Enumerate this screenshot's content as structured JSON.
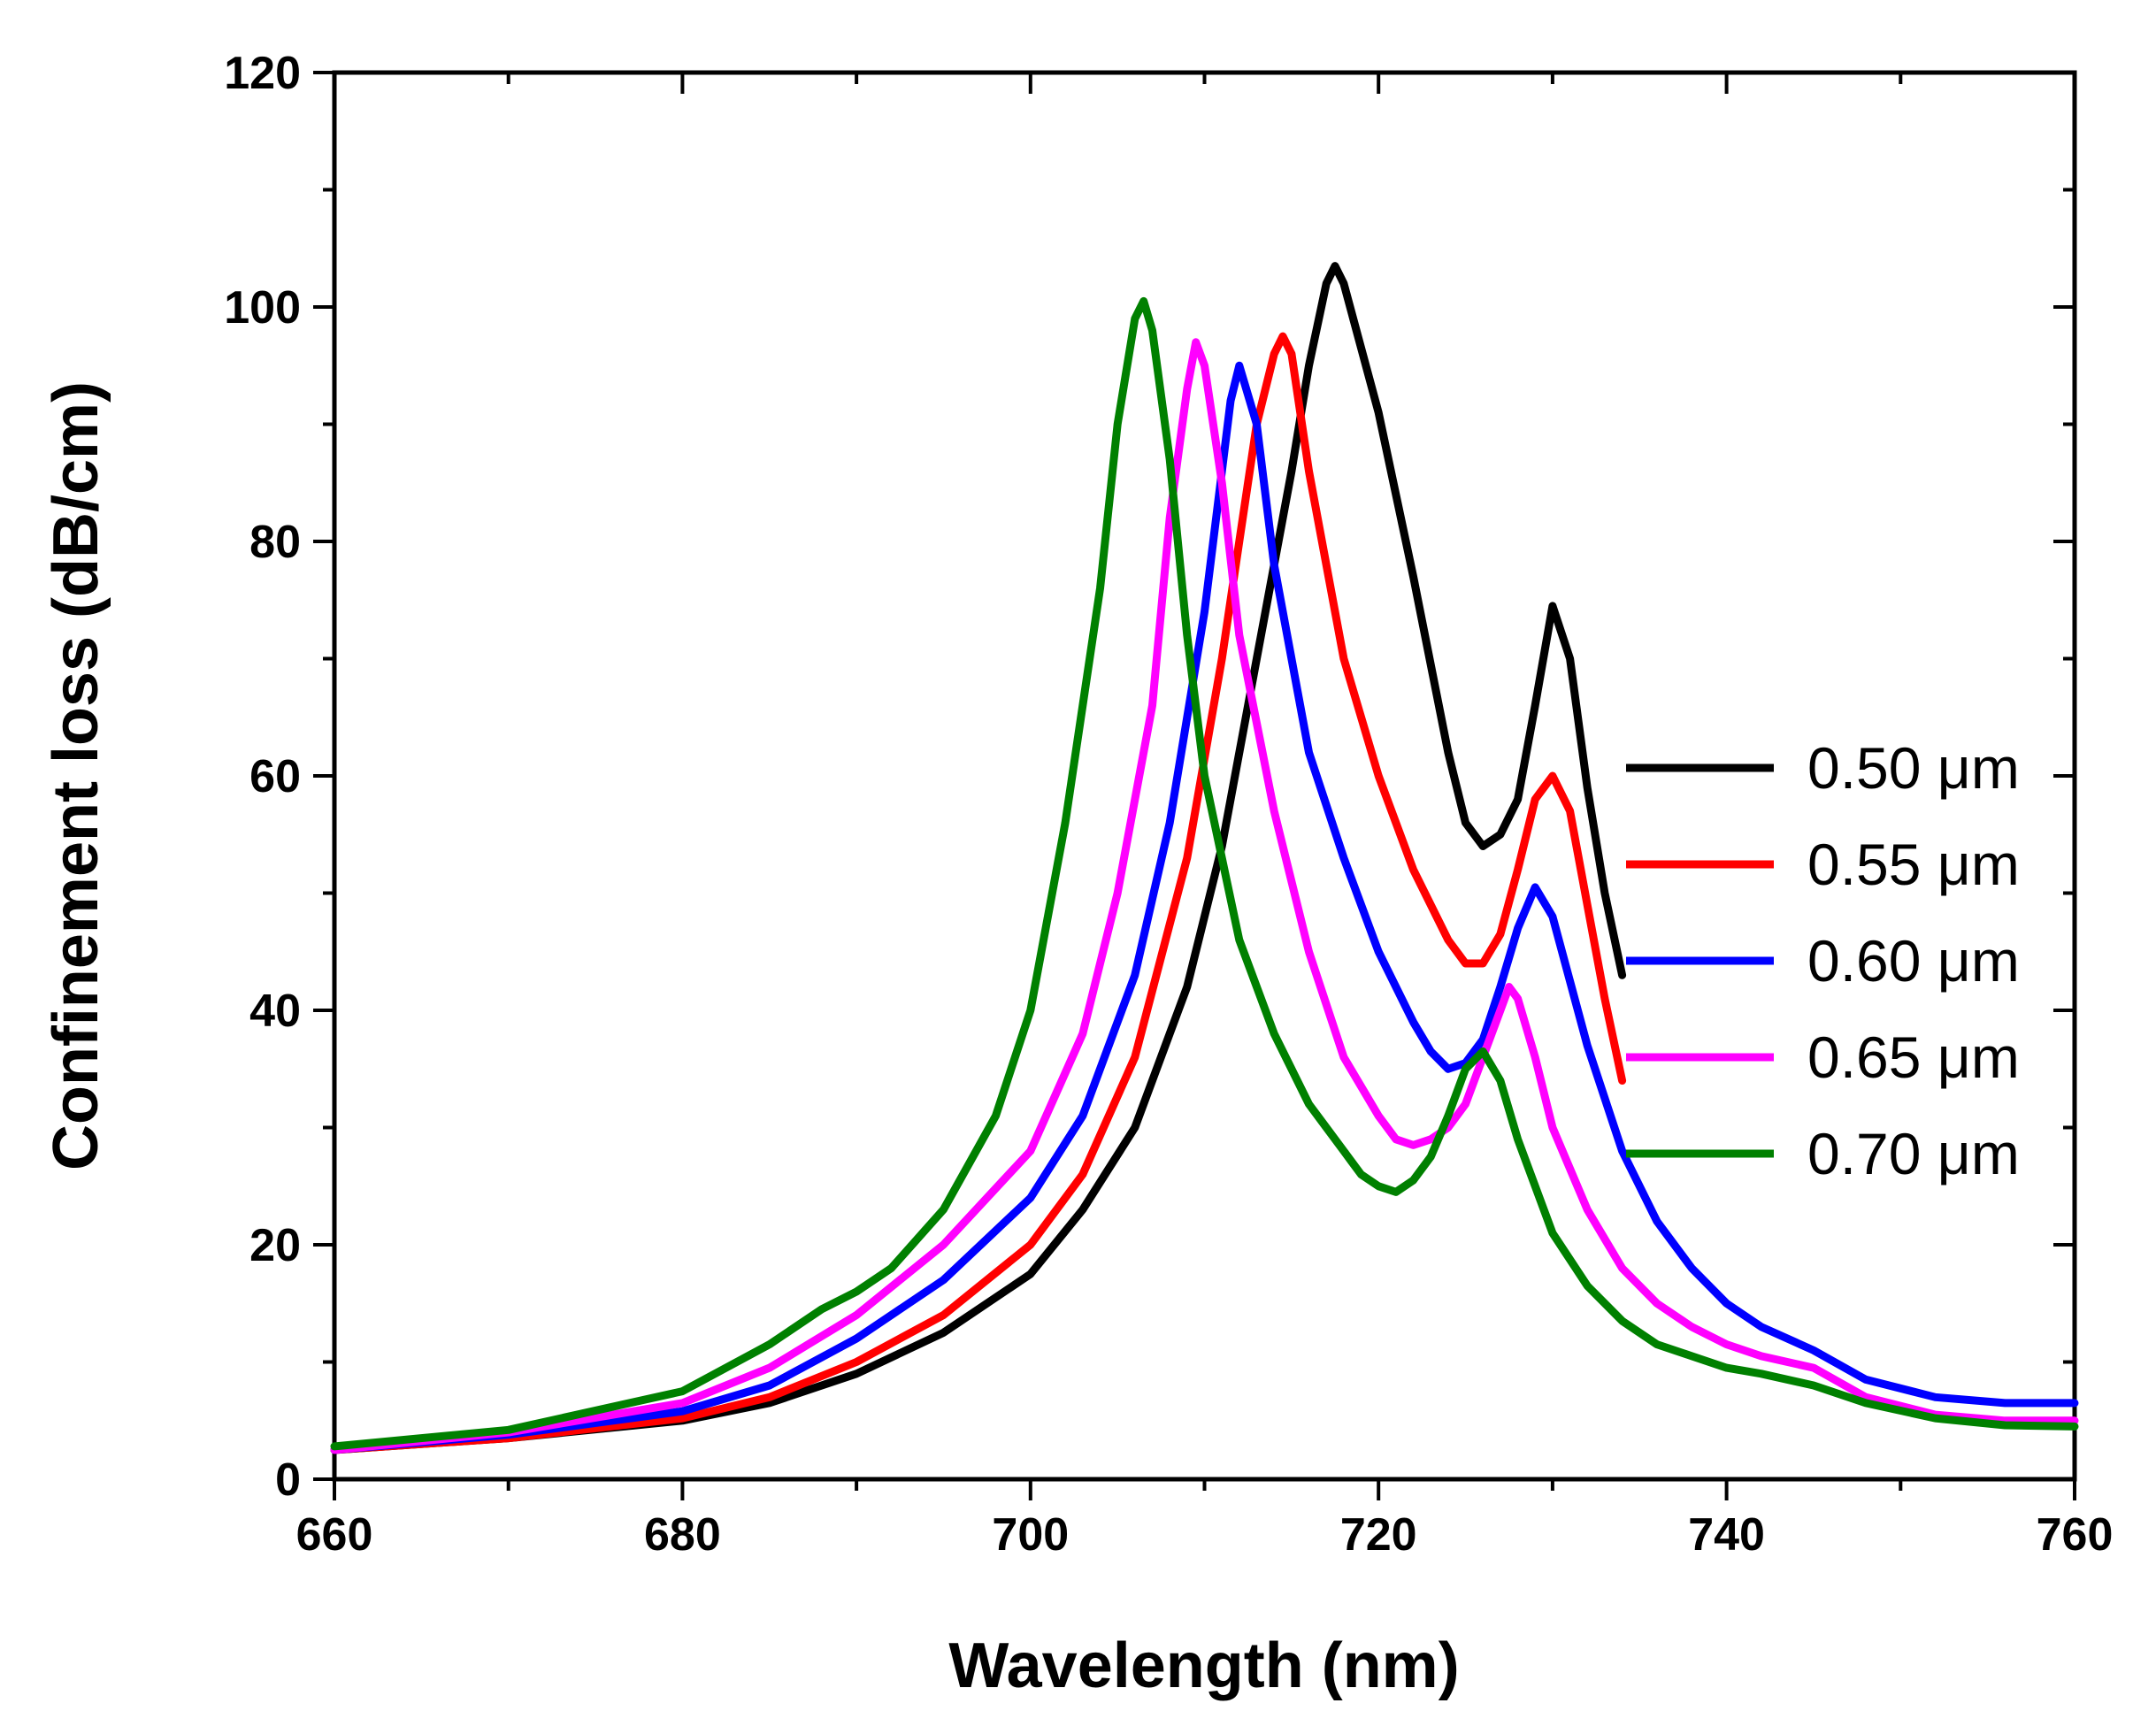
{
  "chart_data": {
    "type": "line",
    "xlabel": "Wavelength (nm)",
    "ylabel": "Confinement loss (dB/cm)",
    "xlim": [
      660,
      760
    ],
    "ylim": [
      0,
      120
    ],
    "xticks": [
      660,
      680,
      700,
      720,
      740,
      760
    ],
    "yticks": [
      0,
      20,
      40,
      60,
      80,
      100,
      120
    ],
    "xtick_labels": [
      "660",
      "680",
      "700",
      "720",
      "740",
      "760"
    ],
    "ytick_labels": [
      "0",
      "20",
      "40",
      "60",
      "80",
      "100",
      "120"
    ],
    "grid": false,
    "legend_position": "right",
    "series": [
      {
        "name": "0.50 μm",
        "color": "#000000",
        "x": [
          660,
          670,
          680,
          685,
          690,
          695,
          700,
          703,
          706,
          709,
          711,
          713,
          715,
          716,
          717,
          717.5,
          718,
          720,
          722,
          724,
          725,
          726,
          727,
          728,
          729,
          730,
          731,
          732,
          733,
          734
        ],
        "y": [
          2.5,
          3.5,
          5.0,
          6.5,
          9.0,
          12.5,
          17.5,
          23,
          30,
          42,
          54,
          70,
          86,
          95,
          102,
          103.5,
          102,
          91,
          77,
          62,
          56,
          54,
          55,
          58,
          66,
          74.5,
          70,
          59,
          50,
          43
        ]
      },
      {
        "name": "0.55 μm",
        "color": "#ff0000",
        "x": [
          660,
          670,
          680,
          685,
          690,
          695,
          700,
          703,
          706,
          709,
          711,
          712,
          713,
          714,
          714.5,
          715,
          716,
          718,
          720,
          722,
          724,
          725,
          726,
          727,
          728,
          729,
          730,
          731,
          732,
          733,
          734
        ],
        "y": [
          2.5,
          3.5,
          5.2,
          7.0,
          10,
          14,
          20,
          26,
          36,
          53,
          70,
          80,
          90,
          96,
          97.5,
          96,
          86,
          70,
          60,
          52,
          46,
          44,
          44,
          46.5,
          52,
          58,
          60,
          57,
          49,
          41,
          34
        ]
      },
      {
        "name": "0.60 μm",
        "color": "#0000ff",
        "x": [
          660,
          670,
          680,
          685,
          690,
          695,
          700,
          703,
          706,
          708,
          710,
          711,
          711.5,
          712,
          713,
          714,
          716,
          718,
          720,
          722,
          723,
          724,
          725,
          726,
          727,
          728,
          729,
          730,
          732,
          734,
          736,
          738,
          740,
          742,
          745,
          748,
          752,
          756,
          760
        ],
        "y": [
          2.5,
          3.8,
          5.8,
          8.0,
          12,
          17,
          24,
          31,
          43,
          56,
          74,
          86,
          92,
          95,
          90,
          78,
          62,
          53,
          45,
          39,
          36.5,
          35,
          35.5,
          37.5,
          42,
          47,
          50.5,
          48,
          37,
          28,
          22,
          18,
          15,
          13,
          11,
          8.5,
          7,
          6.5,
          6.5
        ]
      },
      {
        "name": "0.65 μm",
        "color": "#ff00ff",
        "x": [
          660,
          670,
          680,
          685,
          690,
          695,
          700,
          703,
          705,
          707,
          708,
          709,
          709.5,
          710,
          711,
          712,
          714,
          716,
          718,
          720,
          721,
          722,
          723,
          724,
          725,
          726,
          727,
          727.5,
          728,
          729,
          730,
          732,
          734,
          736,
          738,
          740,
          742,
          745,
          748,
          752,
          756,
          760
        ],
        "y": [
          2.5,
          4.0,
          6.5,
          9.5,
          14,
          20,
          28,
          38,
          50,
          66,
          82,
          93,
          97,
          95,
          85,
          72,
          57,
          45,
          36,
          31,
          29,
          28.5,
          29,
          30,
          32,
          36,
          40,
          42,
          41,
          36,
          30,
          23,
          18,
          15,
          13,
          11.5,
          10.5,
          9.5,
          7,
          5.5,
          5,
          5
        ]
      },
      {
        "name": "0.70 μm",
        "color": "#008000",
        "x": [
          660,
          670,
          680,
          685,
          688,
          690,
          692,
          695,
          698,
          700,
          702,
          704,
          705,
          706,
          706.5,
          707,
          708,
          709,
          710,
          712,
          714,
          716,
          718,
          719,
          720,
          721,
          722,
          723,
          724,
          725,
          726,
          727,
          728,
          730,
          732,
          734,
          736,
          738,
          740,
          742,
          745,
          748,
          752,
          756,
          760
        ],
        "y": [
          2.8,
          4.2,
          7.5,
          11.5,
          14.5,
          16,
          18,
          23,
          31,
          40,
          56,
          76,
          90,
          99,
          100.5,
          98,
          87,
          72,
          60,
          46,
          38,
          32,
          28,
          26,
          25,
          24.5,
          25.5,
          27.5,
          31,
          35,
          36.5,
          34,
          29,
          21,
          16.5,
          13.5,
          11.5,
          10.5,
          9.5,
          9,
          8,
          6.5,
          5.2,
          4.6,
          4.5
        ]
      }
    ]
  }
}
